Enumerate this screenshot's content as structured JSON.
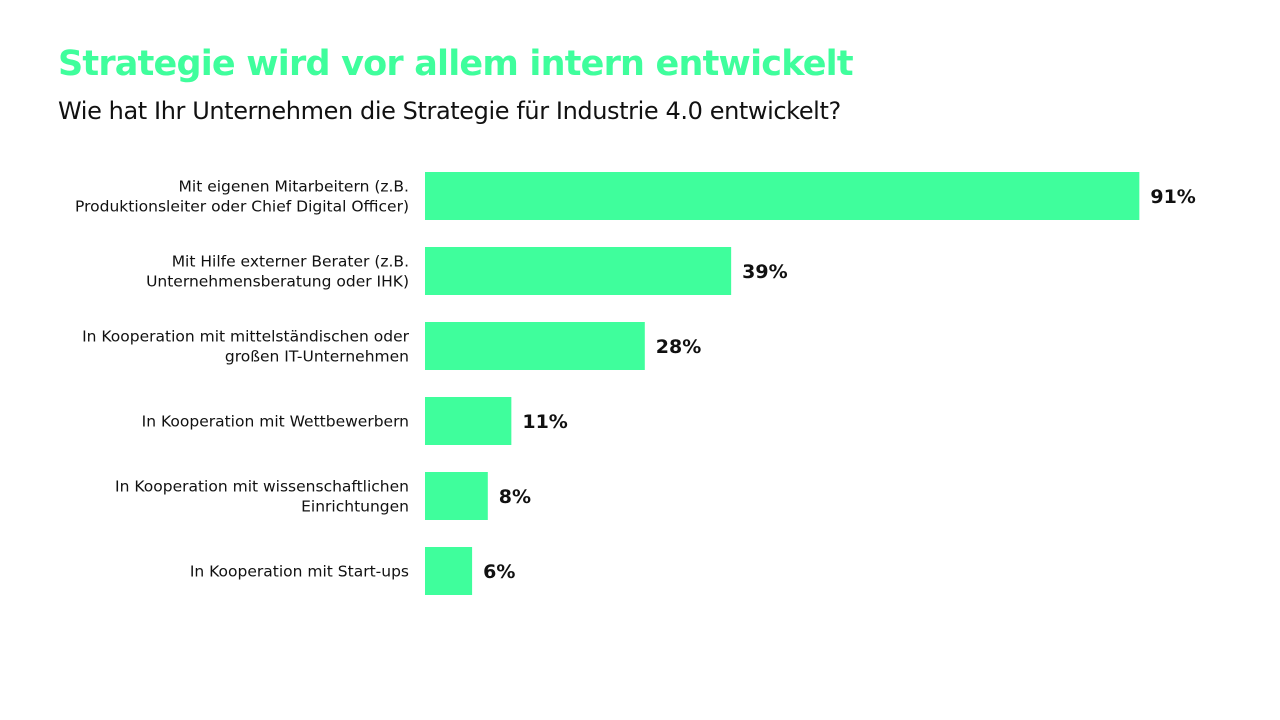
{
  "header": {
    "title": "Strategie wird vor allem intern entwickelt",
    "subtitle": "Wie hat Ihr Unternehmen die Strategie für Industrie 4.0 entwickelt?"
  },
  "colors": {
    "bar": "#3ffe9c",
    "title": "#3ffe9c",
    "text": "#111111"
  },
  "chart_data": {
    "type": "bar",
    "orientation": "horizontal",
    "title": "Strategie wird vor allem intern entwickelt",
    "subtitle": "Wie hat Ihr Unternehmen die Strategie für Industrie 4.0 entwickelt?",
    "categories": [
      [
        "Mit eigenen Mitarbeitern (z.B.",
        "Produktionsleiter oder Chief Digital Officer)"
      ],
      [
        "Mit Hilfe externer Berater (z.B.",
        "Unternehmensberatung oder IHK)"
      ],
      [
        "In Kooperation mit mittelständischen oder",
        "großen IT-Unternehmen"
      ],
      [
        "In Kooperation mit Wettbewerbern"
      ],
      [
        "In Kooperation mit wissenschaftlichen",
        "Einrichtungen"
      ],
      [
        "In Kooperation mit Start-ups"
      ]
    ],
    "values": [
      91,
      39,
      28,
      11,
      8,
      6
    ],
    "value_labels": [
      "91%",
      "39%",
      "28%",
      "11%",
      "8%",
      "6%"
    ],
    "unit": "%",
    "xlim": [
      0,
      100
    ],
    "grid": false,
    "legend": "none"
  }
}
